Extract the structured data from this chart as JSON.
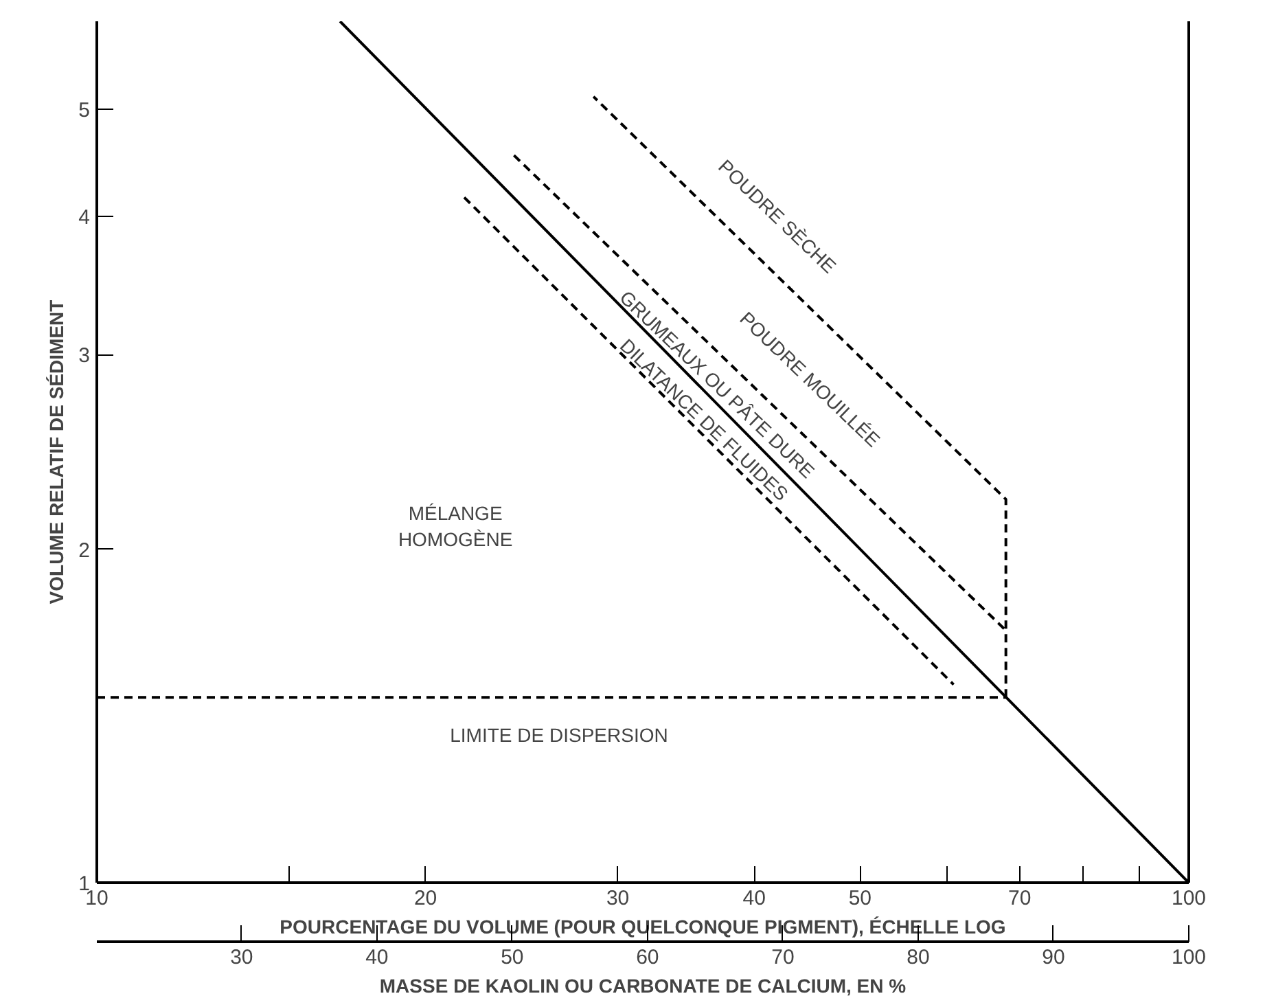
{
  "chart_data": {
    "type": "line",
    "xlabel": "POURCENTAGE DU VOLUME (POUR QUELCONQUE PIGMENT), ÉCHELLE LOG",
    "x2label": "MASSE DE KAOLIN OU CARBONATE DE CALCIUM, EN %",
    "ylabel": "VOLUME RELATIF DE SÉDIMENT",
    "log": "xy",
    "grid": false,
    "xlim": [
      10,
      100
    ],
    "ylim": [
      1,
      6
    ],
    "xticks": [
      10,
      {
        "value": 15,
        "label": null
      },
      20,
      30,
      40,
      50,
      {
        "value": 60,
        "label": null
      },
      70,
      {
        "value": 80,
        "label": null
      },
      {
        "value": 90,
        "label": null
      },
      100
    ],
    "yticks": [
      1,
      2,
      3,
      4,
      5
    ],
    "x2lim": [
      19.3,
      100
    ],
    "x2ticks": [
      30,
      40,
      50,
      60,
      70,
      80,
      90,
      100
    ],
    "series": [
      {
        "color": "#000000",
        "line_style": "solid",
        "x": [
          16.7,
          100
        ],
        "values": [
          6,
          1
        ]
      },
      {
        "color": "#000000",
        "line_style": "dashed",
        "x": [
          10,
          68
        ],
        "values": [
          1.47,
          1.47
        ]
      },
      {
        "color": "#000000",
        "line_style": "dashed",
        "x": [
          68,
          68,
          28.5
        ],
        "values": [
          1.47,
          2.22,
          5.13
        ]
      },
      {
        "color": "#000000",
        "line_style": "dashed",
        "x": [
          24.1,
          68
        ],
        "values": [
          4.54,
          1.69
        ]
      },
      {
        "color": "#000000",
        "line_style": "dashed",
        "x": [
          21.7,
          60.9
        ],
        "values": [
          4.16,
          1.51
        ]
      }
    ],
    "annotations": [
      "POUDRE SÈCHE",
      "POUDRE MOUILLÉE",
      "GRUMEAUX OU PÂTE DURE",
      "DILATANCE DE FLUIDES",
      "MÉLANGE\nHOMOGÈNE",
      "LIMITE DE DISPERSION"
    ]
  }
}
